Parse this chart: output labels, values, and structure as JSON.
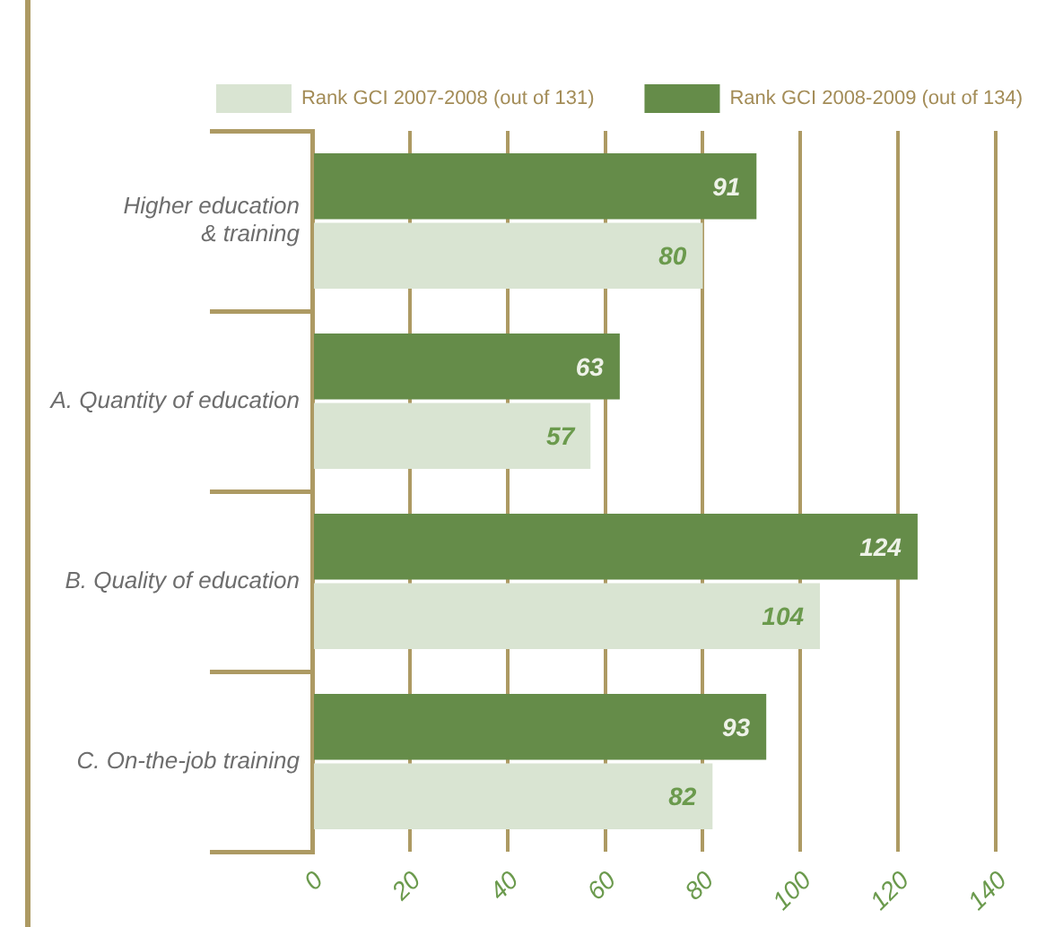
{
  "chart_data": {
    "type": "bar",
    "orientation": "horizontal",
    "categories": [
      "Higher education & training",
      "A. Quantity of education",
      "B. Quality of education",
      "C. On-the-job training"
    ],
    "series": [
      {
        "name": "Rank GCI 2007-2008 (out of 131)",
        "color": "#d9e4d2",
        "values": [
          80,
          57,
          104,
          82
        ]
      },
      {
        "name": "Rank GCI 2008-2009 (out of 134)",
        "color": "#658c49",
        "values": [
          91,
          63,
          124,
          93
        ]
      }
    ],
    "xlim": [
      0,
      140
    ],
    "xticks": [
      0,
      20,
      40,
      60,
      80,
      100,
      120,
      140
    ],
    "grid": "x",
    "legend": "top",
    "data_labels": true
  }
}
